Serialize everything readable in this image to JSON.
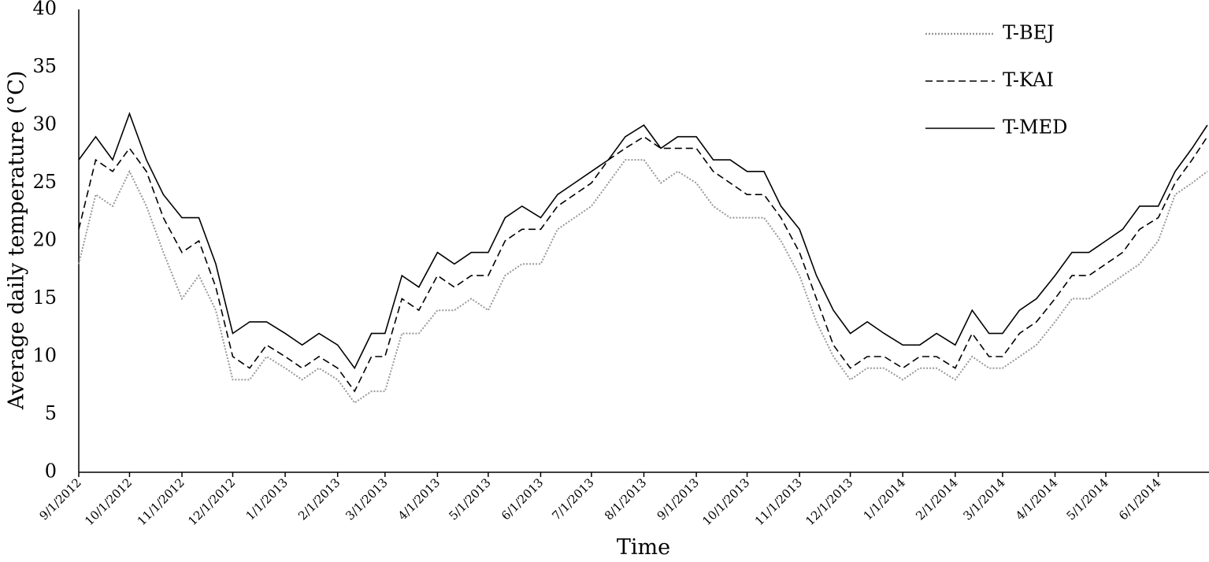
{
  "chart_data": {
    "type": "line",
    "x_label": "Time",
    "y_label": "Average daily temperature (°C)",
    "x": [
      "9/1/2012",
      "9/11/2012",
      "9/21/2012",
      "10/1/2012",
      "10/11/2012",
      "10/21/2012",
      "11/1/2012",
      "11/11/2012",
      "11/21/2012",
      "12/1/2012",
      "12/11/2012",
      "12/21/2012",
      "1/1/2013",
      "1/11/2013",
      "1/21/2013",
      "2/1/2013",
      "2/11/2013",
      "2/21/2013",
      "3/1/2013",
      "3/11/2013",
      "3/21/2013",
      "4/1/2013",
      "4/11/2013",
      "4/21/2013",
      "5/1/2013",
      "5/11/2013",
      "5/21/2013",
      "6/1/2013",
      "6/11/2013",
      "6/21/2013",
      "7/1/2013",
      "7/11/2013",
      "7/21/2013",
      "8/1/2013",
      "8/11/2013",
      "8/21/2013",
      "9/1/2013",
      "9/11/2013",
      "9/21/2013",
      "10/1/2013",
      "10/11/2013",
      "10/21/2013",
      "11/1/2013",
      "11/11/2013",
      "11/21/2013",
      "12/1/2013",
      "12/11/2013",
      "12/21/2013",
      "1/1/2014",
      "1/11/2014",
      "1/21/2014",
      "2/1/2014",
      "2/11/2014",
      "2/21/2014",
      "3/1/2014",
      "3/11/2014",
      "3/21/2014",
      "4/1/2014",
      "4/11/2014",
      "4/21/2014",
      "5/1/2014",
      "5/11/2014",
      "5/21/2014",
      "6/1/2014",
      "6/11/2014",
      "6/21/2014",
      "6/30/2014"
    ],
    "series": [
      {
        "name": "T-BEJ",
        "color": "#999999",
        "dash": "dotted",
        "values": [
          18,
          24,
          23,
          26,
          23,
          19,
          15,
          17,
          14,
          8,
          8,
          10,
          9,
          8,
          9,
          8,
          6,
          7,
          7,
          12,
          12,
          14,
          14,
          15,
          14,
          17,
          18,
          18,
          21,
          22,
          23,
          25,
          27,
          27,
          25,
          26,
          25,
          23,
          22,
          22,
          22,
          20,
          17,
          13,
          10,
          8,
          9,
          9,
          8,
          9,
          9,
          8,
          10,
          9,
          9,
          10,
          11,
          13,
          15,
          15,
          16,
          17,
          18,
          20,
          24,
          25,
          26
        ]
      },
      {
        "name": "T-KAI",
        "color": "#000000",
        "dash": "dashed",
        "values": [
          21,
          27,
          26,
          28,
          26,
          22,
          19,
          20,
          16,
          10,
          9,
          11,
          10,
          9,
          10,
          9,
          7,
          10,
          10,
          15,
          14,
          17,
          16,
          17,
          17,
          20,
          21,
          21,
          23,
          24,
          25,
          27,
          28,
          29,
          28,
          28,
          28,
          26,
          25,
          24,
          24,
          22,
          19,
          15,
          11,
          9,
          10,
          10,
          9,
          10,
          10,
          9,
          12,
          10,
          10,
          12,
          13,
          15,
          17,
          17,
          18,
          19,
          21,
          22,
          25,
          27,
          29
        ]
      },
      {
        "name": "T-MED",
        "color": "#000000",
        "dash": "solid",
        "values": [
          27,
          29,
          27,
          31,
          27,
          24,
          22,
          22,
          18,
          12,
          13,
          13,
          12,
          11,
          12,
          11,
          9,
          12,
          12,
          17,
          16,
          19,
          18,
          19,
          19,
          22,
          23,
          22,
          24,
          25,
          26,
          27,
          29,
          30,
          28,
          29,
          29,
          27,
          27,
          26,
          26,
          23,
          21,
          17,
          14,
          12,
          13,
          12,
          11,
          11,
          12,
          11,
          14,
          12,
          12,
          14,
          15,
          17,
          19,
          19,
          20,
          21,
          23,
          23,
          26,
          28,
          30
        ]
      }
    ],
    "xlim": [
      "9/1/2012",
      "7/1/2014"
    ],
    "xticks": [
      "9/1/2012",
      "10/1/2012",
      "11/1/2012",
      "12/1/2012",
      "1/1/2013",
      "2/1/2013",
      "3/1/2013",
      "4/1/2013",
      "5/1/2013",
      "6/1/2013",
      "7/1/2013",
      "8/1/2013",
      "9/1/2013",
      "10/1/2013",
      "11/1/2013",
      "12/1/2013",
      "1/1/2014",
      "2/1/2014",
      "3/1/2014",
      "4/1/2014",
      "5/1/2014",
      "6/1/2014"
    ],
    "ylim": [
      0,
      40
    ],
    "yticks": [
      0,
      5,
      10,
      15,
      20,
      25,
      30,
      35,
      40
    ],
    "grid": false,
    "legend": "upper right"
  }
}
